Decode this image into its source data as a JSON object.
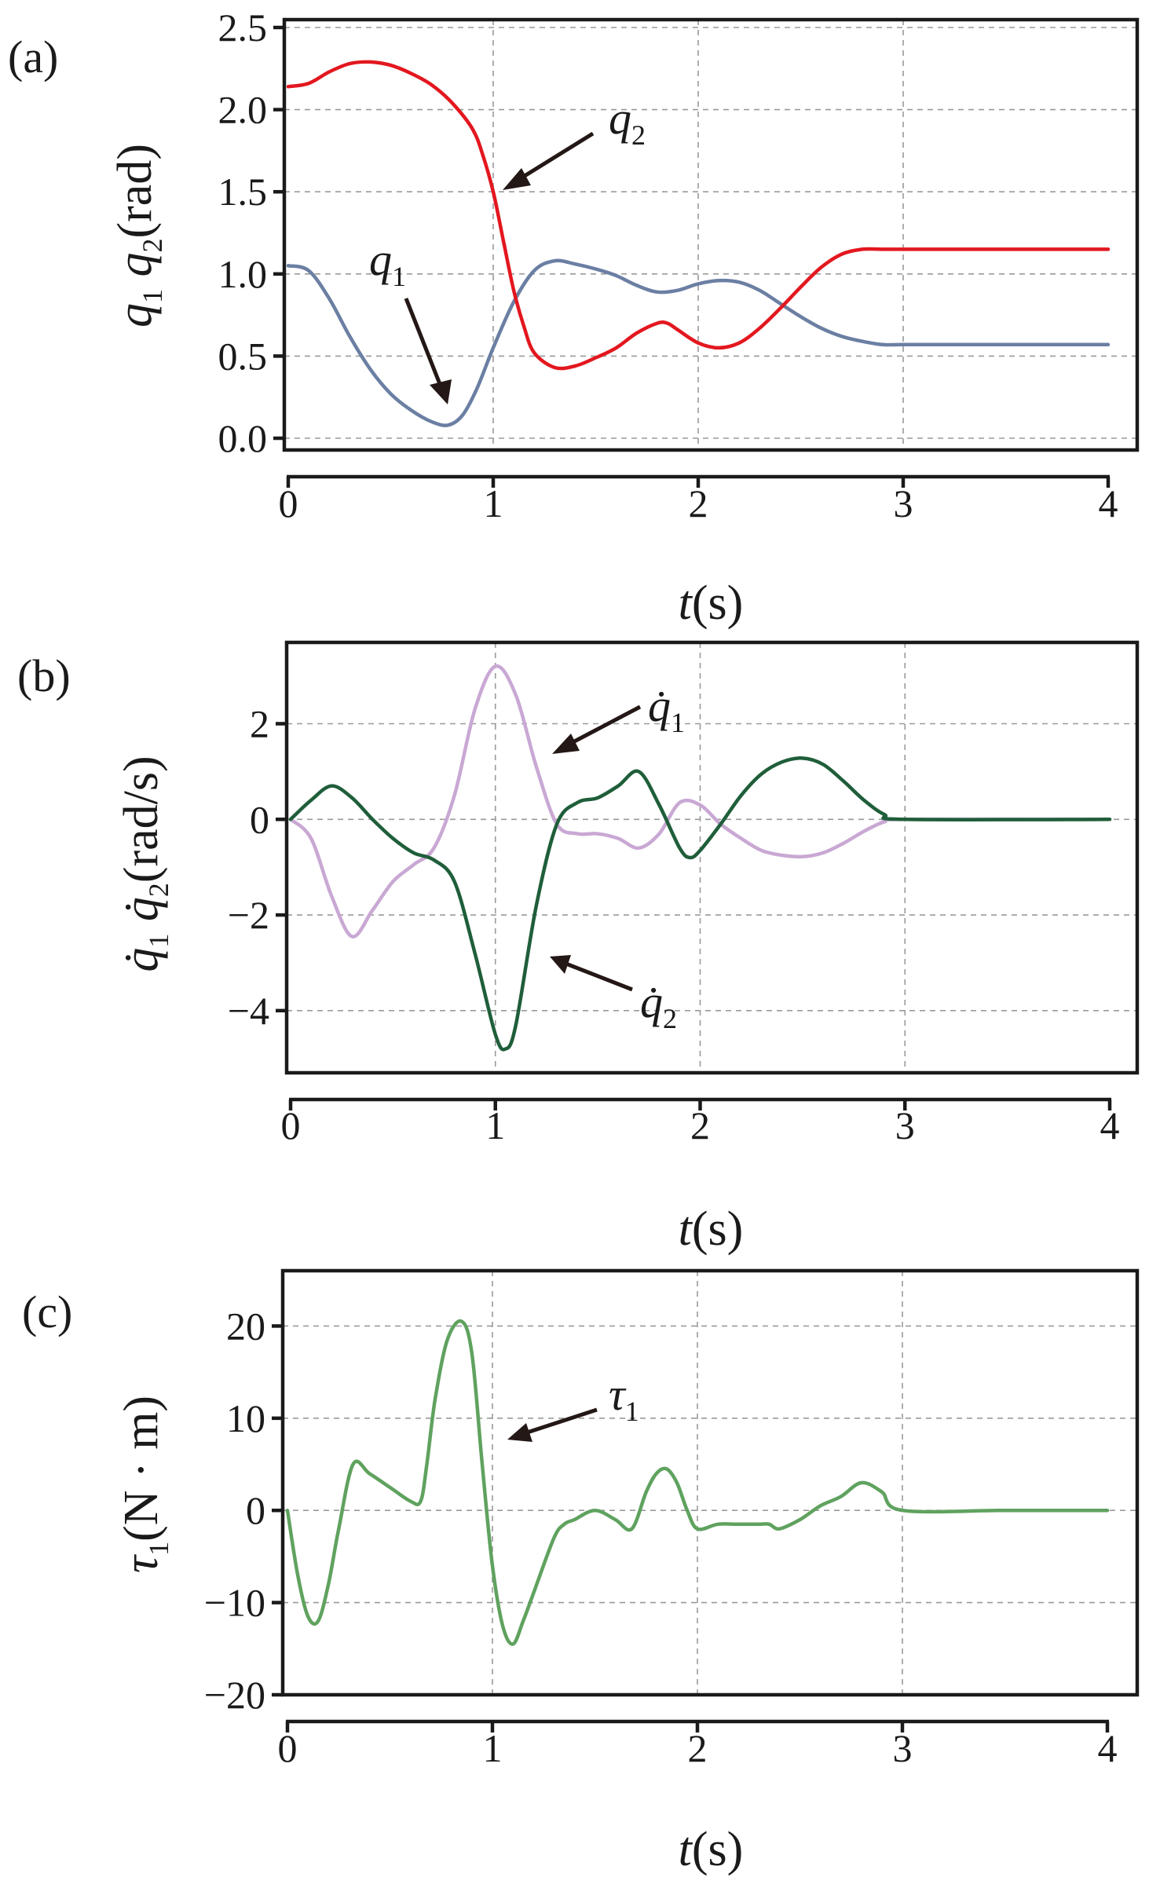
{
  "chart_data": [
    {
      "panel": "(a)",
      "type": "line",
      "xlabel_var": "t",
      "xlabel_unit": "(s)",
      "ylabel_var1": "q",
      "ylabel_sub1": "1",
      "ylabel_var2": "q",
      "ylabel_sub2": "2",
      "ylabel_unit": "(rad)",
      "xlim": [
        0,
        4
      ],
      "ylim": [
        0,
        2.5
      ],
      "xticks": [
        0,
        1,
        2,
        3,
        4
      ],
      "xtick_labels": [
        "0",
        "1",
        "2",
        "3",
        "4"
      ],
      "yticks": [
        0,
        0.5,
        1.0,
        1.5,
        2.0,
        2.5
      ],
      "ytick_labels": [
        "0.0",
        "0.5",
        "1.0",
        "1.5",
        "2.0",
        "2.5"
      ],
      "grid": true,
      "series": [
        {
          "name": "q1",
          "label_var": "q",
          "label_sub": "1",
          "color": "#6b7fa3",
          "x": [
            0,
            0.1,
            0.2,
            0.3,
            0.4,
            0.5,
            0.6,
            0.7,
            0.78,
            0.85,
            0.92,
            1.0,
            1.1,
            1.2,
            1.3,
            1.4,
            1.5,
            1.6,
            1.7,
            1.8,
            1.9,
            2.0,
            2.1,
            2.2,
            2.3,
            2.4,
            2.5,
            2.6,
            2.7,
            2.8,
            2.9,
            3.0,
            3.5,
            4.0
          ],
          "y": [
            1.05,
            1.02,
            0.85,
            0.62,
            0.42,
            0.27,
            0.17,
            0.1,
            0.08,
            0.14,
            0.3,
            0.55,
            0.83,
            1.02,
            1.08,
            1.06,
            1.03,
            0.99,
            0.93,
            0.89,
            0.9,
            0.94,
            0.96,
            0.95,
            0.9,
            0.82,
            0.74,
            0.67,
            0.62,
            0.59,
            0.57,
            0.57,
            0.57,
            0.57
          ]
        },
        {
          "name": "q2",
          "label_var": "q",
          "label_sub": "2",
          "color": "#e3171f",
          "x": [
            0,
            0.1,
            0.2,
            0.3,
            0.4,
            0.5,
            0.6,
            0.7,
            0.8,
            0.9,
            0.95,
            1.0,
            1.05,
            1.1,
            1.15,
            1.2,
            1.3,
            1.4,
            1.5,
            1.6,
            1.7,
            1.8,
            1.85,
            1.9,
            2.0,
            2.1,
            2.2,
            2.3,
            2.4,
            2.5,
            2.6,
            2.7,
            2.8,
            2.9,
            3.0,
            3.5,
            4.0
          ],
          "y": [
            2.14,
            2.16,
            2.23,
            2.28,
            2.29,
            2.27,
            2.22,
            2.15,
            2.04,
            1.88,
            1.72,
            1.5,
            1.2,
            0.9,
            0.68,
            0.52,
            0.43,
            0.44,
            0.49,
            0.55,
            0.64,
            0.7,
            0.7,
            0.66,
            0.58,
            0.55,
            0.58,
            0.67,
            0.79,
            0.92,
            1.04,
            1.12,
            1.15,
            1.15,
            1.15,
            1.15,
            1.15
          ]
        }
      ]
    },
    {
      "panel": "(b)",
      "type": "line",
      "xlabel_var": "t",
      "xlabel_unit": "(s)",
      "ylabel_var1": "q̇",
      "ylabel_sub1": "1",
      "ylabel_var2": "q̇",
      "ylabel_sub2": "2",
      "ylabel_unit": "(rad/s)",
      "xlim": [
        0,
        4
      ],
      "ylim": [
        -5.3,
        3.7
      ],
      "xticks": [
        0,
        1,
        2,
        3,
        4
      ],
      "xtick_labels": [
        "0",
        "1",
        "2",
        "3",
        "4"
      ],
      "yticks": [
        -4,
        -2,
        0,
        2
      ],
      "ytick_labels": [
        "−4",
        "−2",
        "0",
        "2"
      ],
      "grid": true,
      "series": [
        {
          "name": "q1dot",
          "label_var": "q̇",
          "label_sub": "1",
          "color": "#c9a8d4",
          "x": [
            0,
            0.1,
            0.2,
            0.3,
            0.4,
            0.5,
            0.6,
            0.7,
            0.8,
            0.9,
            1.0,
            1.1,
            1.2,
            1.3,
            1.4,
            1.5,
            1.6,
            1.7,
            1.8,
            1.9,
            2.0,
            2.1,
            2.2,
            2.3,
            2.4,
            2.5,
            2.6,
            2.7,
            2.8,
            2.9,
            3.0,
            4.0
          ],
          "y": [
            0,
            -0.4,
            -1.6,
            -2.45,
            -1.9,
            -1.3,
            -0.95,
            -0.6,
            0.5,
            2.3,
            3.2,
            2.6,
            1.1,
            -0.1,
            -0.3,
            -0.3,
            -0.4,
            -0.6,
            -0.3,
            0.35,
            0.3,
            -0.1,
            -0.4,
            -0.65,
            -0.75,
            -0.78,
            -0.7,
            -0.5,
            -0.25,
            -0.05,
            0,
            0
          ]
        },
        {
          "name": "q2dot",
          "label_var": "q̇",
          "label_sub": "2",
          "color": "#1f5e3a",
          "x": [
            0,
            0.1,
            0.2,
            0.3,
            0.4,
            0.5,
            0.6,
            0.7,
            0.8,
            0.9,
            1.0,
            1.05,
            1.1,
            1.2,
            1.3,
            1.4,
            1.5,
            1.6,
            1.7,
            1.8,
            1.9,
            1.95,
            2.0,
            2.1,
            2.2,
            2.3,
            2.4,
            2.5,
            2.6,
            2.7,
            2.8,
            2.9,
            3.0,
            4.0
          ],
          "y": [
            0,
            0.4,
            0.7,
            0.45,
            0.0,
            -0.4,
            -0.7,
            -0.85,
            -1.3,
            -2.8,
            -4.5,
            -4.8,
            -4.3,
            -1.8,
            -0.1,
            0.35,
            0.45,
            0.7,
            1.0,
            0.3,
            -0.6,
            -0.8,
            -0.65,
            -0.1,
            0.5,
            0.95,
            1.2,
            1.28,
            1.15,
            0.8,
            0.4,
            0.1,
            0,
            0
          ]
        }
      ]
    },
    {
      "panel": "(c)",
      "type": "line",
      "xlabel_var": "t",
      "xlabel_unit": "(s)",
      "ylabel_var1": "τ",
      "ylabel_sub1": "1",
      "ylabel_unit": "(N · m)",
      "xlim": [
        0,
        4
      ],
      "ylim": [
        -20,
        26
      ],
      "xticks": [
        0,
        1,
        2,
        3,
        4
      ],
      "xtick_labels": [
        "0",
        "1",
        "2",
        "3",
        "4"
      ],
      "yticks": [
        -20,
        -10,
        0,
        10,
        20
      ],
      "ytick_labels": [
        "−20",
        "−10",
        "0",
        "10",
        "20"
      ],
      "grid": true,
      "series": [
        {
          "name": "tau1",
          "label_var": "τ",
          "label_sub": "1",
          "color": "#5fa25f",
          "x": [
            0,
            0.05,
            0.1,
            0.15,
            0.2,
            0.25,
            0.32,
            0.4,
            0.5,
            0.6,
            0.65,
            0.68,
            0.72,
            0.78,
            0.85,
            0.9,
            0.95,
            1.0,
            1.05,
            1.1,
            1.15,
            1.2,
            1.3,
            1.35,
            1.4,
            1.5,
            1.6,
            1.68,
            1.75,
            1.8,
            1.85,
            1.9,
            1.95,
            2.0,
            2.1,
            2.2,
            2.3,
            2.35,
            2.4,
            2.5,
            2.6,
            2.7,
            2.8,
            2.9,
            3.0,
            3.5,
            4.0
          ],
          "y": [
            0,
            -7,
            -11.5,
            -12,
            -8,
            -2,
            5,
            4,
            2.5,
            1,
            1,
            5,
            12,
            18.5,
            20.5,
            17,
            5,
            -6,
            -12.5,
            -14.5,
            -12,
            -9,
            -3,
            -1.5,
            -1,
            0,
            -1,
            -2,
            2,
            4,
            4.5,
            3,
            0,
            -2,
            -1.5,
            -1.5,
            -1.5,
            -1.5,
            -2,
            -1,
            0.5,
            1.5,
            3,
            2,
            0,
            0,
            0
          ]
        }
      ]
    }
  ]
}
